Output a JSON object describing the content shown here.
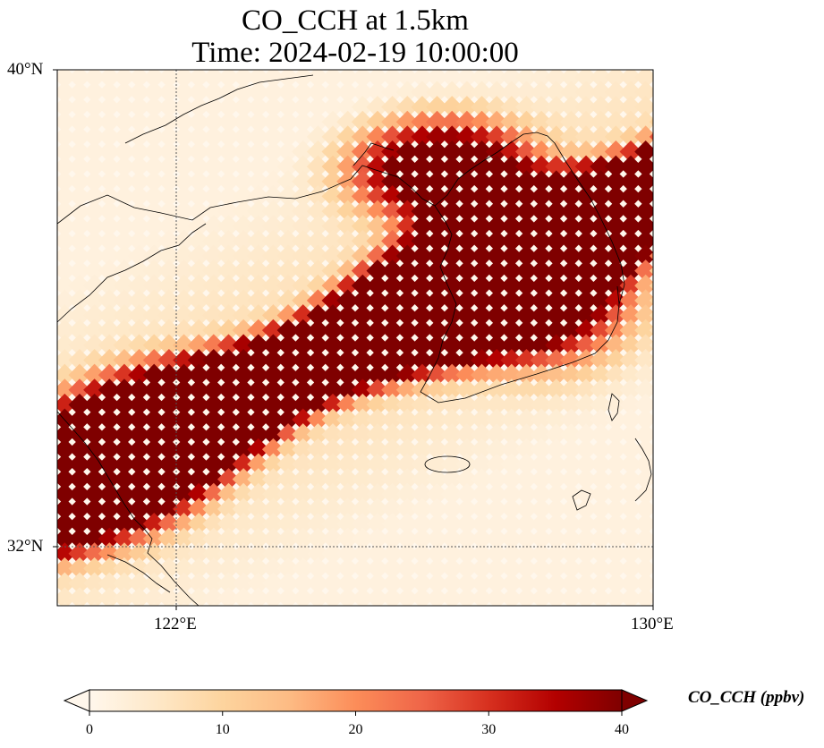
{
  "title": {
    "line1": "CO_CCH at 1.5km",
    "line2": "Time: 2024-02-19 10:00:00"
  },
  "chart_data": {
    "type": "heatmap",
    "variable": "CO_CCH",
    "height_level": "1.5km",
    "time": "2024-02-19 10:00:00",
    "colormap": "OrRd",
    "lon_range": [
      120,
      130
    ],
    "lat_range": [
      31,
      40
    ],
    "lon_ticks": [
      "122°E",
      "130°E"
    ],
    "lat_ticks": [
      "40°N",
      "32°N"
    ],
    "gridlines": "dotted at 122°E and 32°N",
    "colorbar": {
      "label": "CO_CCH (ppbv)",
      "ticks": [
        "0",
        "10",
        "20",
        "30",
        "40"
      ],
      "min": 0,
      "max": 40,
      "extend": "both",
      "colors": [
        "#fff7ec",
        "#fee8c8",
        "#fdd49e",
        "#fdbb84",
        "#fc8d59",
        "#ef6548",
        "#d7301f",
        "#b30000",
        "#7f0000"
      ]
    },
    "plume": {
      "description": "diagonal CO band from SW to NE over Yellow Sea and Korean Peninsula",
      "max_value_ppbv": 40,
      "background_value_ppbv": 2
    }
  }
}
